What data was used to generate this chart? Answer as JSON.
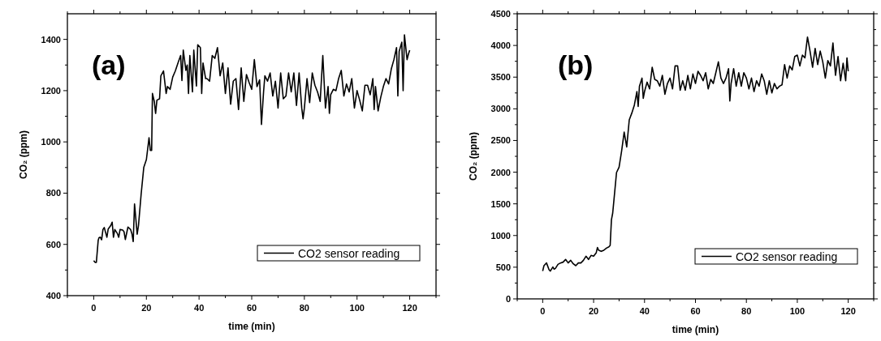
{
  "chart_data": [
    {
      "type": "line",
      "annotations": [
        "(a)"
      ],
      "xlabel": "time (min)",
      "ylabel": "CO₂ (ppm)",
      "xlim": [
        -10,
        130
      ],
      "ylim": [
        400,
        1500
      ],
      "xticks": [
        {
          "value": -10,
          "label": null
        },
        0,
        {
          "value": 10,
          "label": null
        },
        20,
        {
          "value": 30,
          "label": null
        },
        40,
        {
          "value": 50,
          "label": null
        },
        60,
        {
          "value": 70,
          "label": null
        },
        80,
        {
          "value": 90,
          "label": null
        },
        100,
        {
          "value": 110,
          "label": null
        },
        120,
        {
          "value": 130,
          "label": null
        }
      ],
      "yticks": [
        400,
        {
          "value": 500,
          "label": null
        },
        600,
        {
          "value": 700,
          "label": null
        },
        800,
        {
          "value": 900,
          "label": null
        },
        1000,
        {
          "value": 1100,
          "label": null
        },
        1200,
        {
          "value": 1300,
          "label": null
        },
        1400
      ],
      "legend": "bottom right",
      "series": [
        {
          "name": "CO2 sensor reading",
          "color": "#000000",
          "x": [
            0,
            0.5,
            1,
            1.7,
            2,
            2.5,
            3,
            3.5,
            4,
            5,
            5.5,
            6.5,
            7,
            7.5,
            8,
            9,
            9.5,
            10,
            11,
            11.5,
            12,
            13,
            14,
            14.5,
            15,
            15.5,
            16.5,
            17,
            18,
            19,
            20,
            21,
            21.5,
            22,
            22.3,
            23,
            23.5,
            24,
            25,
            25.5,
            26.5,
            27.5,
            28,
            29,
            30,
            31,
            32,
            33,
            33.5,
            34,
            35,
            35.5,
            36,
            36.5,
            37.5,
            38,
            39,
            39.5,
            40.5,
            41,
            41.5,
            42.5,
            43,
            44,
            45,
            46,
            47,
            48,
            49,
            50,
            51,
            52,
            53,
            54,
            55,
            56,
            57,
            58,
            59,
            60,
            61,
            62,
            63,
            63.7,
            64.5,
            65,
            66,
            67,
            68,
            69,
            70,
            71,
            72,
            73,
            74,
            75,
            76,
            77,
            78,
            79,
            79.5,
            80,
            81,
            82,
            83,
            84,
            85,
            86,
            87,
            88,
            89,
            89.5,
            90,
            91,
            92,
            93,
            94,
            95,
            96,
            97,
            98,
            99,
            100,
            101,
            102,
            103,
            104,
            105,
            106,
            106.5,
            107,
            108,
            109,
            110,
            111,
            112,
            113,
            114,
            115,
            115.5,
            116,
            117,
            117.5,
            118,
            119,
            119.5,
            120
          ],
          "values": [
            537,
            530,
            530,
            616,
            626,
            628,
            618,
            658,
            666,
            628,
            660,
            674,
            687,
            628,
            658,
            642,
            628,
            658,
            656,
            650,
            619,
            668,
            658,
            642,
            611,
            758,
            640,
            674,
            795,
            900,
            931,
            1016,
            967,
            967,
            1189,
            1158,
            1111,
            1163,
            1168,
            1258,
            1277,
            1189,
            1216,
            1205,
            1253,
            1277,
            1308,
            1337,
            1239,
            1358,
            1279,
            1300,
            1189,
            1337,
            1195,
            1358,
            1218,
            1379,
            1368,
            1189,
            1308,
            1247,
            1247,
            1237,
            1337,
            1326,
            1368,
            1258,
            1308,
            1189,
            1289,
            1147,
            1237,
            1247,
            1126,
            1289,
            1158,
            1263,
            1232,
            1205,
            1321,
            1216,
            1242,
            1068,
            1195,
            1258,
            1237,
            1269,
            1179,
            1237,
            1132,
            1269,
            1168,
            1179,
            1269,
            1195,
            1269,
            1142,
            1269,
            1132,
            1090,
            1132,
            1247,
            1153,
            1269,
            1221,
            1195,
            1158,
            1337,
            1132,
            1216,
            1111,
            1184,
            1205,
            1200,
            1247,
            1279,
            1179,
            1226,
            1195,
            1247,
            1132,
            1200,
            1163,
            1121,
            1221,
            1221,
            1184,
            1247,
            1126,
            1216,
            1121,
            1174,
            1216,
            1247,
            1226,
            1284,
            1321,
            1368,
            1179,
            1353,
            1389,
            1200,
            1418,
            1321,
            1342,
            1358
          ]
        }
      ]
    },
    {
      "type": "line",
      "annotations": [
        "(b)"
      ],
      "xlabel": "time (min)",
      "ylabel": "CO₂ (ppm)",
      "xlim": [
        -10,
        130
      ],
      "ylim": [
        0,
        4500
      ],
      "xticks": [
        {
          "value": -10,
          "label": null
        },
        0,
        {
          "value": 10,
          "label": null
        },
        20,
        {
          "value": 30,
          "label": null
        },
        40,
        {
          "value": 50,
          "label": null
        },
        60,
        {
          "value": 70,
          "label": null
        },
        80,
        {
          "value": 90,
          "label": null
        },
        100,
        {
          "value": 110,
          "label": null
        },
        120,
        {
          "value": 130,
          "label": null
        }
      ],
      "yticks": [
        0,
        {
          "value": 250,
          "label": null
        },
        500,
        {
          "value": 750,
          "label": null
        },
        1000,
        {
          "value": 1250,
          "label": null
        },
        1500,
        {
          "value": 1750,
          "label": null
        },
        2000,
        {
          "value": 2250,
          "label": null
        },
        2500,
        {
          "value": 2750,
          "label": null
        },
        3000,
        {
          "value": 3250,
          "label": null
        },
        3500,
        {
          "value": 3750,
          "label": null
        },
        4000,
        {
          "value": 4250,
          "label": null
        },
        4500
      ],
      "legend": "bottom right",
      "series": [
        {
          "name": "CO2 sensor reading",
          "color": "#000000",
          "x": [
            0,
            0.5,
            1.5,
            2.5,
            3,
            4,
            4.5,
            5,
            6,
            7,
            8,
            9,
            10,
            11,
            12,
            13,
            14,
            15,
            16,
            17,
            18,
            19,
            20,
            21,
            21.5,
            22,
            23,
            24,
            25,
            26,
            26.5,
            27,
            27.5,
            28,
            29,
            30,
            31,
            32,
            33,
            34,
            35,
            36,
            37,
            37.5,
            38,
            39,
            39.5,
            40,
            41,
            42,
            43,
            44,
            45,
            46,
            47,
            48,
            49,
            50,
            51,
            52,
            53,
            54,
            55,
            56,
            57,
            58,
            59,
            60,
            61,
            62,
            63,
            64,
            65,
            66,
            67,
            68,
            69,
            70,
            71,
            72,
            73,
            73.5,
            74,
            75,
            76,
            77,
            78,
            79,
            80,
            81,
            82,
            83,
            84,
            85,
            86,
            87,
            88,
            89,
            90,
            91,
            92,
            93,
            94,
            95,
            96,
            97,
            98,
            99,
            100,
            101,
            102,
            103,
            104,
            105,
            106,
            107,
            108,
            109,
            110,
            111,
            112,
            113,
            114,
            115,
            116,
            117,
            118,
            119,
            119.5,
            120
          ],
          "values": [
            439,
            524,
            567,
            460,
            439,
            503,
            469,
            481,
            545,
            567,
            580,
            622,
            567,
            609,
            554,
            524,
            567,
            567,
            609,
            673,
            622,
            686,
            673,
            724,
            810,
            767,
            750,
            767,
            801,
            822,
            844,
            1248,
            1355,
            1568,
            1994,
            2079,
            2335,
            2633,
            2399,
            2825,
            2932,
            3059,
            3272,
            3038,
            3357,
            3485,
            3166,
            3272,
            3421,
            3315,
            3656,
            3464,
            3443,
            3357,
            3528,
            3230,
            3400,
            3485,
            3315,
            3677,
            3677,
            3294,
            3443,
            3294,
            3528,
            3315,
            3549,
            3400,
            3592,
            3528,
            3443,
            3570,
            3315,
            3464,
            3400,
            3570,
            3741,
            3485,
            3400,
            3485,
            3634,
            3123,
            3400,
            3634,
            3357,
            3570,
            3357,
            3570,
            3485,
            3315,
            3485,
            3272,
            3443,
            3357,
            3549,
            3443,
            3230,
            3443,
            3251,
            3400,
            3315,
            3357,
            3379,
            3698,
            3485,
            3677,
            3613,
            3826,
            3847,
            3677,
            3847,
            3804,
            4133,
            3911,
            3656,
            3954,
            3698,
            3911,
            3741,
            3485,
            3762,
            3677,
            4039,
            3528,
            3826,
            3443,
            3720,
            3443,
            3804,
            3592
          ]
        }
      ]
    }
  ]
}
